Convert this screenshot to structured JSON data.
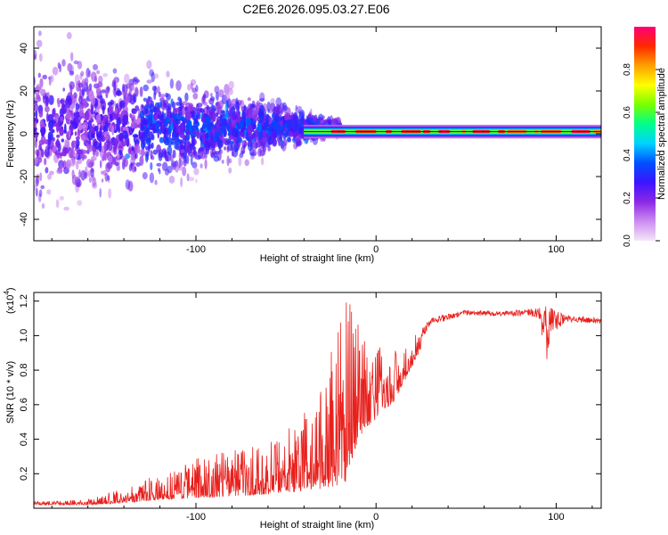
{
  "figure": {
    "title": "C2E6.2026.095.03.27.E06"
  },
  "colors": {
    "snr_line": "#e8201c",
    "ridge_center": "#e81a2a",
    "axis": "#000000",
    "background": "#ffffff"
  },
  "chart_data": [
    {
      "id": "spectrogram",
      "type": "heatmap",
      "title": "",
      "xlabel": "Height of straight line (km)",
      "ylabel": "Frequency (Hz)",
      "xlim": [
        -190,
        125
      ],
      "ylim": [
        -50,
        50
      ],
      "x_ticks": [
        -100,
        0,
        100
      ],
      "y_ticks": [
        -40,
        -20,
        0,
        20,
        40
      ],
      "ridge": {
        "frequency": 1,
        "start_x": -40,
        "end_x": 125
      },
      "scatter_extent": [
        {
          "x": -190,
          "halfwidth": 48
        },
        {
          "x": -140,
          "halfwidth": 35
        },
        {
          "x": -100,
          "halfwidth": 26
        },
        {
          "x": -60,
          "halfwidth": 16
        },
        {
          "x": -35,
          "halfwidth": 8
        },
        {
          "x": -20,
          "halfwidth": 4
        }
      ],
      "colorbar": {
        "label": "Normalized spectral amplitude",
        "range": [
          0,
          1
        ],
        "ticks": [
          "0.0",
          "0.2",
          "0.4",
          "0.6",
          "0.8"
        ],
        "colormap": [
          "#f4e6fa",
          "#cc8cf0",
          "#8c28e6",
          "#3c14ff",
          "#0050ff",
          "#00d2ff",
          "#00ff8c",
          "#78ff00",
          "#ffff00",
          "#ffa000",
          "#ff2800",
          "#ff0078"
        ]
      }
    },
    {
      "id": "snr",
      "type": "line",
      "title": "",
      "xlabel": "Height of straight line (km)",
      "ylabel": "SNR (10 * v/v)",
      "yscale_label": "(x10",
      "yscale_exp": "4",
      "yscale_close": ")",
      "xlim": [
        -190,
        125
      ],
      "ylim": [
        0,
        1.25
      ],
      "x_ticks": [
        -100,
        0,
        100
      ],
      "y_ticks": [
        "0.2",
        "0.4",
        "0.6",
        "0.8",
        "1.0",
        "1.2"
      ],
      "series": [
        {
          "name": "SNR",
          "envelope": [
            {
              "x": -190,
              "base": 0.02,
              "peak": 0.04
            },
            {
              "x": -160,
              "base": 0.02,
              "peak": 0.05
            },
            {
              "x": -140,
              "base": 0.03,
              "peak": 0.12
            },
            {
              "x": -120,
              "base": 0.05,
              "peak": 0.2
            },
            {
              "x": -100,
              "base": 0.06,
              "peak": 0.3
            },
            {
              "x": -80,
              "base": 0.07,
              "peak": 0.34
            },
            {
              "x": -60,
              "base": 0.08,
              "peak": 0.38
            },
            {
              "x": -40,
              "base": 0.1,
              "peak": 0.55
            },
            {
              "x": -25,
              "base": 0.12,
              "peak": 0.9
            },
            {
              "x": -17,
              "base": 0.15,
              "peak": 1.25
            },
            {
              "x": -10,
              "base": 0.4,
              "peak": 1.1
            },
            {
              "x": 0,
              "base": 0.52,
              "peak": 0.95
            },
            {
              "x": 10,
              "base": 0.62,
              "peak": 0.92
            },
            {
              "x": 20,
              "base": 0.82,
              "peak": 0.98
            },
            {
              "x": 30,
              "base": 1.04,
              "peak": 1.1
            },
            {
              "x": 50,
              "base": 1.1,
              "peak": 1.15
            },
            {
              "x": 70,
              "base": 1.1,
              "peak": 1.14
            },
            {
              "x": 90,
              "base": 1.08,
              "peak": 1.16
            },
            {
              "x": 95,
              "base": 0.85,
              "peak": 1.18
            },
            {
              "x": 105,
              "base": 1.06,
              "peak": 1.12
            },
            {
              "x": 125,
              "base": 1.05,
              "peak": 1.1
            }
          ]
        }
      ]
    }
  ]
}
